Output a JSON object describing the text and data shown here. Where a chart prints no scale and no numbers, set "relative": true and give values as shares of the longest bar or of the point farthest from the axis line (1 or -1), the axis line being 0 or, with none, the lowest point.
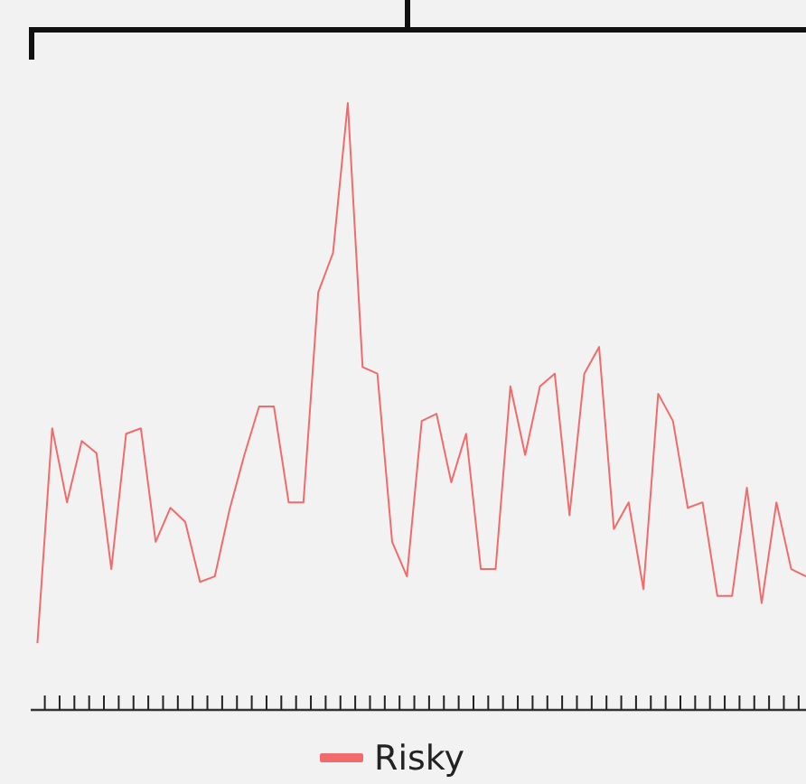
{
  "chart_data": {
    "type": "line",
    "relative": true,
    "legend": "bottom",
    "categories": [
      null,
      null,
      null,
      null,
      null,
      null,
      null,
      null,
      null,
      null,
      null,
      null,
      null,
      null,
      null,
      null,
      null,
      null,
      null,
      null,
      null,
      null,
      null,
      null,
      null,
      null,
      null,
      null,
      null,
      null,
      null,
      null,
      null,
      null,
      null,
      null,
      null,
      null,
      null,
      null,
      null,
      null,
      null,
      null,
      null,
      null,
      null,
      null,
      null,
      null,
      null,
      null,
      null
    ],
    "series": [
      {
        "name": "Risky",
        "color": "#f26b6b",
        "values": [
          0.11,
          0.464,
          0.342,
          0.443,
          0.423,
          0.232,
          0.455,
          0.464,
          0.277,
          0.333,
          0.31,
          0.211,
          0.22,
          0.33,
          0.42,
          0.5,
          0.5,
          0.342,
          0.342,
          0.688,
          0.753,
          1,
          0.565,
          0.554,
          0.277,
          0.22,
          0.476,
          0.488,
          0.375,
          0.455,
          0.232,
          0.232,
          0.533,
          0.42,
          0.533,
          0.554,
          0.321,
          0.554,
          0.598,
          0.298,
          0.342,
          0.199,
          0.521,
          0.476,
          0.333,
          0.342,
          0.188,
          0.188,
          0.366,
          0.176,
          0.342,
          0.232,
          0.22
        ]
      }
    ]
  }
}
